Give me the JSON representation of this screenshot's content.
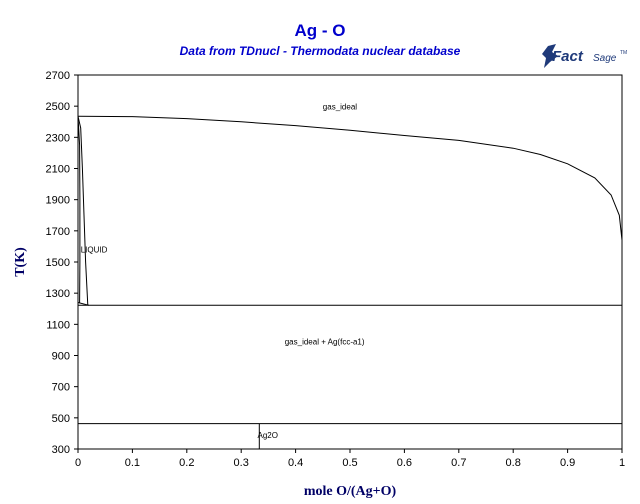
{
  "header": {
    "title": "Ag - O",
    "subtitle": "Data from TDnucl - Thermodata nuclear database"
  },
  "logo": {
    "text_main": "Fact",
    "text_sage": "Sage",
    "trademark": "TM",
    "color": "#1f3a7a"
  },
  "chart_data": {
    "type": "line",
    "title": "Ag - O",
    "subtitle": "Data from TDnucl - Thermodata nuclear database",
    "xlabel": "mole O/(Ag+O)",
    "ylabel": "T(K)",
    "xlim": [
      0,
      1
    ],
    "ylim": [
      300,
      2700
    ],
    "x_ticks": [
      "0",
      "0.1",
      "0.2",
      "0.3",
      "0.4",
      "0.5",
      "0.6",
      "0.7",
      "0.8",
      "0.9",
      "1"
    ],
    "y_ticks": [
      "300",
      "500",
      "700",
      "900",
      "1100",
      "1300",
      "1500",
      "1700",
      "1900",
      "2100",
      "2300",
      "2500",
      "2700"
    ],
    "grid": false,
    "legend": "none",
    "series": [
      {
        "points": [
          [
            0,
            2435
          ],
          [
            0.1,
            2433
          ],
          [
            0.2,
            2420
          ],
          [
            0.3,
            2400
          ],
          [
            0.4,
            2375
          ],
          [
            0.5,
            2345
          ],
          [
            0.6,
            2312
          ],
          [
            0.7,
            2280
          ],
          [
            0.8,
            2230
          ],
          [
            0.85,
            2190
          ],
          [
            0.9,
            2130
          ],
          [
            0.95,
            2040
          ],
          [
            0.98,
            1930
          ],
          [
            0.995,
            1800
          ],
          [
            1.0,
            1640
          ]
        ]
      },
      {
        "points": [
          [
            0,
            2435
          ],
          [
            0.005,
            2360
          ],
          [
            0.008,
            2100
          ],
          [
            0.011,
            1800
          ],
          [
            0.014,
            1500
          ],
          [
            0.018,
            1222
          ]
        ]
      },
      {
        "points": [
          [
            0,
            2435
          ],
          [
            0.003,
            2250
          ],
          [
            0.0035,
            1900
          ],
          [
            0.0035,
            1500
          ],
          [
            0.003,
            1235
          ]
        ]
      },
      {
        "points": [
          [
            0,
            1240
          ],
          [
            0.02,
            1222
          ]
        ]
      },
      {
        "points": [
          [
            0,
            1222
          ],
          [
            1,
            1222
          ]
        ]
      },
      {
        "points": [
          [
            0,
            463
          ],
          [
            1,
            463
          ]
        ]
      },
      {
        "points": [
          [
            0.3333,
            300
          ],
          [
            0.3333,
            463
          ]
        ]
      }
    ],
    "annotations": [
      {
        "text": "gas_ideal",
        "x": 0.45,
        "y": 2480
      },
      {
        "text": "LIQUID",
        "x": 0.005,
        "y": 1560
      },
      {
        "text": "gas_ideal + Ag(fcc-a1)",
        "x": 0.38,
        "y": 970
      },
      {
        "text": "Ag2O",
        "x": 0.33,
        "y": 370
      }
    ]
  }
}
